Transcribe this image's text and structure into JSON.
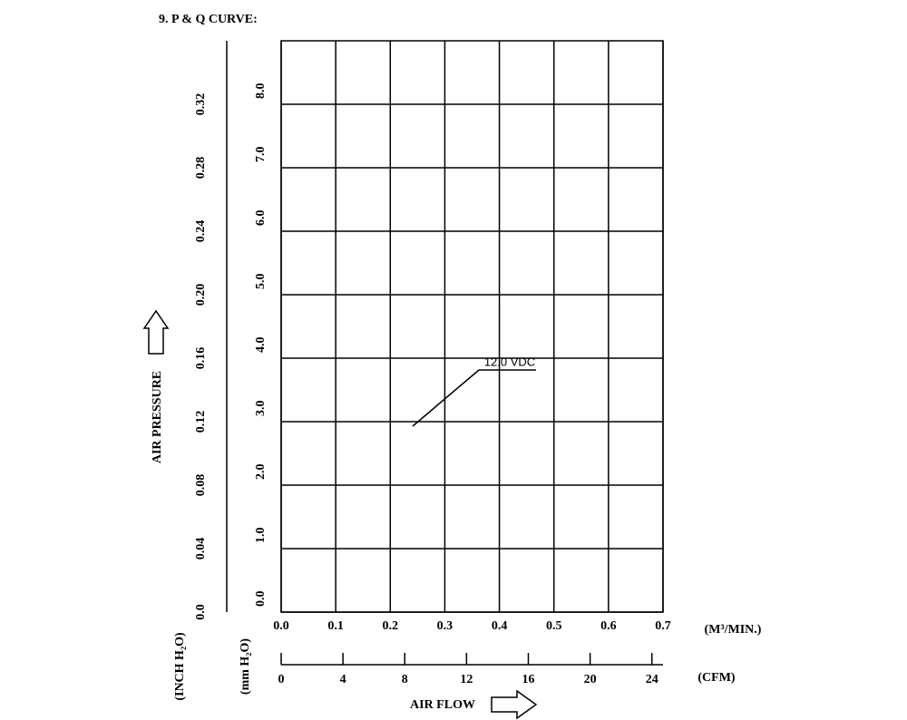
{
  "chart_data": {
    "type": "line",
    "title": "9. P & Q CURVE:",
    "xlabel": "AIR FLOW",
    "xunit": "(M³/MIN.)",
    "xlim": [
      0,
      0.7
    ],
    "xticks": [
      {
        "value": 0,
        "label": "0.0"
      },
      0.1,
      0.2,
      0.3,
      0.4,
      0.5,
      0.6,
      0.7
    ],
    "x2unit": "(CFM)",
    "x2lim": [
      0,
      24.72
    ],
    "x2ticks": [
      0,
      4,
      8,
      12,
      16,
      20,
      24
    ],
    "ylabel": "AIR PRESSURE",
    "yunit": "(mm H₂O)",
    "ylim": [
      0,
      9
    ],
    "yticks": [
      {
        "value": 0,
        "label": "0.0"
      },
      {
        "value": 1,
        "label": "1.0"
      },
      {
        "value": 2,
        "label": "2.0"
      },
      {
        "value": 3,
        "label": "3.0"
      },
      {
        "value": 4,
        "label": "4.0"
      },
      {
        "value": 5,
        "label": "5.0"
      },
      {
        "value": 6,
        "label": "6.0"
      },
      {
        "value": 7,
        "label": "7.0"
      },
      {
        "value": 8,
        "label": "8.0"
      }
    ],
    "y2unit": "(INCH H₂O)",
    "y2lim": [
      0,
      0.36
    ],
    "y2ticks": [
      {
        "value": 0,
        "label": "0.0"
      },
      0.04,
      0.08,
      0.12,
      0.16,
      {
        "value": 0.2,
        "label": "0.20"
      },
      0.24,
      0.28,
      0.32
    ],
    "grid": true,
    "annotation": "12.0 VDC"
  }
}
